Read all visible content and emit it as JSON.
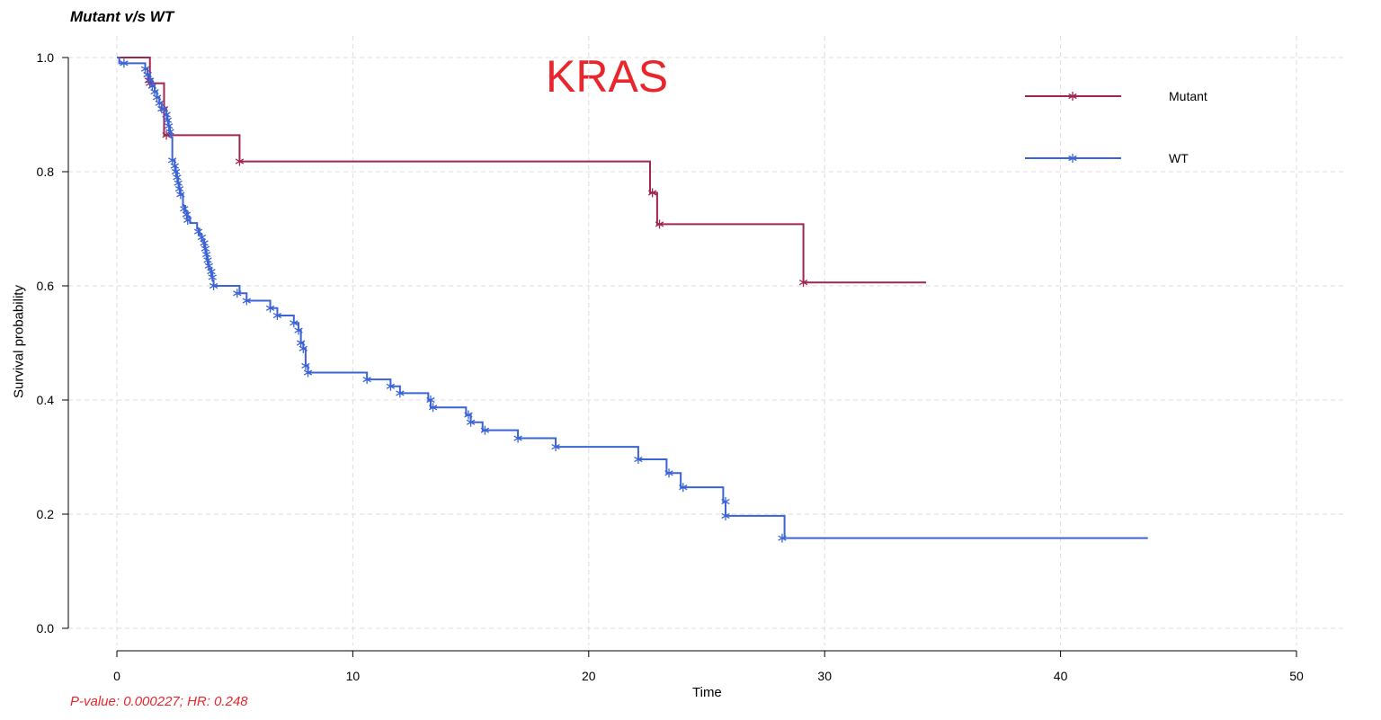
{
  "chart_data": {
    "type": "line",
    "subtype": "kaplan-meier",
    "title": "Mutant v/s WT",
    "annotation": "KRAS",
    "footer": "P-value: 0.000227; HR: 0.248",
    "xlabel": "Time",
    "ylabel": "Survival probability",
    "xlim": [
      0,
      50
    ],
    "ylim": [
      0,
      1
    ],
    "xticks": [
      0,
      10,
      20,
      30,
      40,
      50
    ],
    "yticks": [
      "0.0",
      "0.2",
      "0.4",
      "0.6",
      "0.8",
      "1.0"
    ],
    "grid": true,
    "legend_position": "top-right",
    "series": [
      {
        "name": "Mutant",
        "color": "#a0264f",
        "steps": [
          [
            0,
            1.0
          ],
          [
            1.4,
            0.955
          ],
          [
            2.0,
            0.864
          ],
          [
            5.2,
            0.818
          ],
          [
            22.6,
            0.763
          ],
          [
            22.9,
            0.708
          ],
          [
            29.1,
            0.606
          ],
          [
            34.3,
            0.606
          ]
        ],
        "censors": [
          [
            1.3,
            0.97
          ],
          [
            1.35,
            0.96
          ],
          [
            1.4,
            0.955
          ],
          [
            2.0,
            0.91
          ],
          [
            2.1,
            0.864
          ],
          [
            5.2,
            0.818
          ],
          [
            22.7,
            0.763
          ],
          [
            23.0,
            0.708
          ],
          [
            29.1,
            0.606
          ]
        ]
      },
      {
        "name": "WT",
        "color": "#3b63d6",
        "steps": [
          [
            0,
            1.0
          ],
          [
            0.1,
            0.99
          ],
          [
            1.2,
            0.98
          ],
          [
            1.3,
            0.97
          ],
          [
            1.4,
            0.96
          ],
          [
            1.5,
            0.95
          ],
          [
            1.6,
            0.94
          ],
          [
            1.7,
            0.93
          ],
          [
            1.8,
            0.92
          ],
          [
            1.9,
            0.91
          ],
          [
            2.1,
            0.9
          ],
          [
            2.15,
            0.89
          ],
          [
            2.2,
            0.88
          ],
          [
            2.25,
            0.87
          ],
          [
            2.3,
            0.86
          ],
          [
            2.35,
            0.82
          ],
          [
            2.45,
            0.81
          ],
          [
            2.5,
            0.8
          ],
          [
            2.55,
            0.79
          ],
          [
            2.6,
            0.78
          ],
          [
            2.65,
            0.77
          ],
          [
            2.7,
            0.76
          ],
          [
            2.8,
            0.74
          ],
          [
            2.9,
            0.73
          ],
          [
            3.0,
            0.72
          ],
          [
            3.1,
            0.71
          ],
          [
            3.4,
            0.7
          ],
          [
            3.5,
            0.69
          ],
          [
            3.6,
            0.68
          ],
          [
            3.7,
            0.67
          ],
          [
            3.75,
            0.66
          ],
          [
            3.8,
            0.65
          ],
          [
            3.85,
            0.64
          ],
          [
            3.9,
            0.63
          ],
          [
            4.0,
            0.62
          ],
          [
            4.05,
            0.61
          ],
          [
            4.1,
            0.6
          ],
          [
            5.2,
            0.587
          ],
          [
            5.5,
            0.574
          ],
          [
            6.5,
            0.561
          ],
          [
            6.8,
            0.548
          ],
          [
            7.5,
            0.535
          ],
          [
            7.7,
            0.522
          ],
          [
            7.8,
            0.5
          ],
          [
            7.9,
            0.49
          ],
          [
            8.0,
            0.46
          ],
          [
            8.1,
            0.448
          ],
          [
            10.6,
            0.436
          ],
          [
            11.6,
            0.424
          ],
          [
            12.0,
            0.412
          ],
          [
            13.2,
            0.4
          ],
          [
            13.3,
            0.387
          ],
          [
            14.8,
            0.374
          ],
          [
            15.0,
            0.361
          ],
          [
            15.5,
            0.347
          ],
          [
            17.0,
            0.333
          ],
          [
            18.6,
            0.318
          ],
          [
            22.1,
            0.296
          ],
          [
            23.3,
            0.272
          ],
          [
            23.9,
            0.247
          ],
          [
            25.7,
            0.222
          ],
          [
            25.8,
            0.197
          ],
          [
            28.3,
            0.158
          ],
          [
            43.7,
            0.158
          ]
        ],
        "censors": [
          [
            0.3,
            0.99
          ],
          [
            1.2,
            0.98
          ],
          [
            1.3,
            0.97
          ],
          [
            1.4,
            0.96
          ],
          [
            1.5,
            0.95
          ],
          [
            1.6,
            0.94
          ],
          [
            1.7,
            0.93
          ],
          [
            1.8,
            0.92
          ],
          [
            1.9,
            0.91
          ],
          [
            2.1,
            0.9
          ],
          [
            2.15,
            0.89
          ],
          [
            2.2,
            0.88
          ],
          [
            2.25,
            0.87
          ],
          [
            2.35,
            0.82
          ],
          [
            2.45,
            0.81
          ],
          [
            2.5,
            0.8
          ],
          [
            2.55,
            0.79
          ],
          [
            2.6,
            0.78
          ],
          [
            2.65,
            0.77
          ],
          [
            2.7,
            0.76
          ],
          [
            2.85,
            0.735
          ],
          [
            2.95,
            0.725
          ],
          [
            3.0,
            0.715
          ],
          [
            3.45,
            0.695
          ],
          [
            3.6,
            0.685
          ],
          [
            3.7,
            0.675
          ],
          [
            3.75,
            0.665
          ],
          [
            3.8,
            0.655
          ],
          [
            3.85,
            0.645
          ],
          [
            3.9,
            0.635
          ],
          [
            4.0,
            0.625
          ],
          [
            4.05,
            0.615
          ],
          [
            4.1,
            0.6
          ],
          [
            5.1,
            0.587
          ],
          [
            5.5,
            0.574
          ],
          [
            6.5,
            0.561
          ],
          [
            6.8,
            0.548
          ],
          [
            7.5,
            0.535
          ],
          [
            7.7,
            0.522
          ],
          [
            7.8,
            0.5
          ],
          [
            7.9,
            0.49
          ],
          [
            8.0,
            0.46
          ],
          [
            8.1,
            0.448
          ],
          [
            10.6,
            0.436
          ],
          [
            11.6,
            0.424
          ],
          [
            12.0,
            0.412
          ],
          [
            13.3,
            0.4
          ],
          [
            13.4,
            0.387
          ],
          [
            14.9,
            0.374
          ],
          [
            15.0,
            0.361
          ],
          [
            15.6,
            0.347
          ],
          [
            17.0,
            0.333
          ],
          [
            18.6,
            0.318
          ],
          [
            22.1,
            0.296
          ],
          [
            23.4,
            0.272
          ],
          [
            24.0,
            0.247
          ],
          [
            25.8,
            0.222
          ],
          [
            25.8,
            0.197
          ],
          [
            28.2,
            0.158
          ]
        ]
      }
    ]
  }
}
